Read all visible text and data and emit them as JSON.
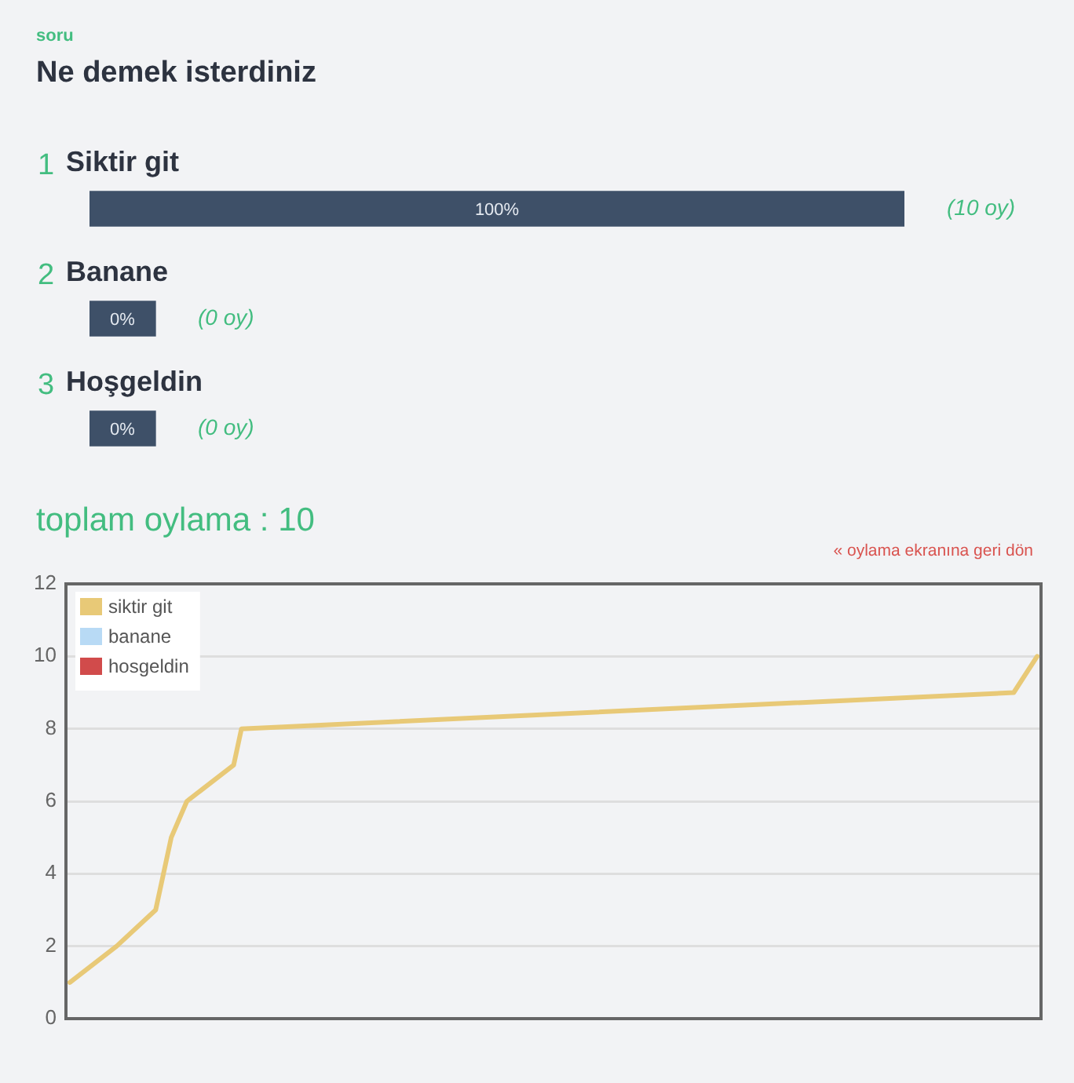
{
  "chart_data": [
    {
      "type": "bar",
      "orientation": "horizontal",
      "subtitle": "soru",
      "title": "Ne demek isterdiniz",
      "categories": [
        "Siktir git",
        "Banane",
        "Hoşgeldin"
      ],
      "values": [
        100,
        0,
        0
      ],
      "value_labels": [
        "100%",
        "0%",
        "0%"
      ],
      "color": "#3e5068",
      "annotations": [
        "1",
        "2",
        "3",
        "(10 oy)",
        "(0 oy)",
        "(0 oy)",
        "toplam oylama : 10"
      ]
    },
    {
      "type": "line",
      "categories": [
        null,
        null,
        null,
        null,
        null,
        null,
        null,
        null,
        null,
        null,
        null,
        null,
        null,
        null,
        null,
        null,
        null,
        null,
        null,
        null,
        null,
        null,
        null,
        null,
        null,
        null,
        null,
        null,
        null,
        null,
        null,
        null,
        null,
        null,
        null,
        null,
        null,
        null,
        null,
        null,
        null,
        null,
        null,
        null,
        null,
        null,
        null,
        null,
        null,
        null,
        null,
        null,
        null,
        null,
        null,
        null,
        null,
        null,
        null,
        null,
        null,
        null,
        null,
        null,
        null,
        null,
        null,
        null,
        null,
        null,
        null,
        null,
        null,
        null,
        null,
        null,
        null,
        null,
        null,
        null,
        null,
        null,
        null,
        null,
        null,
        null,
        null,
        null,
        null,
        null,
        null,
        null,
        null,
        null,
        null,
        null,
        null,
        null,
        null,
        null,
        null,
        null,
        null,
        null,
        null,
        null,
        null,
        null,
        null,
        null,
        null,
        null,
        null,
        null,
        null,
        null,
        null,
        null,
        null,
        null,
        null,
        null,
        null,
        null,
        null
      ],
      "series": [
        {
          "name": "siktir git",
          "color": "#e8c977",
          "values": [
            1,
            null,
            null,
            null,
            null,
            null,
            2,
            null,
            null,
            null,
            null,
            3,
            4,
            5,
            null,
            6,
            null,
            null,
            null,
            null,
            null,
            7,
            8,
            null,
            null,
            null,
            null,
            null,
            null,
            null,
            null,
            null,
            null,
            null,
            null,
            null,
            null,
            null,
            null,
            null,
            null,
            null,
            null,
            null,
            null,
            null,
            null,
            null,
            null,
            null,
            null,
            null,
            null,
            null,
            null,
            null,
            null,
            null,
            null,
            null,
            null,
            null,
            null,
            null,
            null,
            null,
            null,
            null,
            null,
            null,
            null,
            null,
            null,
            null,
            null,
            null,
            null,
            null,
            null,
            null,
            null,
            null,
            null,
            null,
            null,
            null,
            null,
            null,
            null,
            null,
            null,
            null,
            null,
            null,
            null,
            null,
            null,
            null,
            null,
            null,
            null,
            null,
            null,
            null,
            null,
            null,
            null,
            null,
            null,
            null,
            null,
            null,
            null,
            null,
            null,
            null,
            null,
            null,
            null,
            null,
            null,
            9,
            null,
            null,
            10
          ]
        },
        {
          "name": "banane",
          "color": "#b8daf5",
          "values": [
            null,
            null,
            null,
            null,
            null,
            null,
            null,
            null,
            null,
            null,
            null,
            null,
            null,
            null,
            null,
            null,
            null,
            null,
            null,
            null,
            null,
            null,
            null,
            null,
            null,
            null,
            null,
            null,
            null,
            null,
            null,
            null,
            null,
            null,
            null,
            null,
            null,
            null,
            null,
            null,
            null,
            null,
            null,
            null,
            null,
            null,
            null,
            null,
            null,
            null,
            null,
            null,
            null,
            null,
            null,
            null,
            null,
            null,
            null,
            null,
            null,
            null,
            null,
            null,
            null,
            null,
            null,
            null,
            null,
            null,
            null,
            null,
            null,
            null,
            null,
            null,
            null,
            null,
            null,
            null,
            null,
            null,
            null,
            null,
            null,
            null,
            null,
            null,
            null,
            null,
            null,
            null,
            null,
            null,
            null,
            null,
            null,
            null,
            null,
            null,
            null,
            null,
            null,
            null,
            null,
            null,
            null,
            null,
            null,
            null,
            null,
            null,
            null,
            null,
            null,
            null,
            null,
            null,
            null,
            null,
            null,
            null,
            null,
            null,
            null
          ]
        },
        {
          "name": "hosgeldin",
          "color": "#d14b4b",
          "values": [
            null,
            null,
            null,
            null,
            null,
            null,
            null,
            null,
            null,
            null,
            null,
            null,
            null,
            null,
            null,
            null,
            null,
            null,
            null,
            null,
            null,
            null,
            null,
            null,
            null,
            null,
            null,
            null,
            null,
            null,
            null,
            null,
            null,
            null,
            null,
            null,
            null,
            null,
            null,
            null,
            null,
            null,
            null,
            null,
            null,
            null,
            null,
            null,
            null,
            null,
            null,
            null,
            null,
            null,
            null,
            null,
            null,
            null,
            null,
            null,
            null,
            null,
            null,
            null,
            null,
            null,
            null,
            null,
            null,
            null,
            null,
            null,
            null,
            null,
            null,
            null,
            null,
            null,
            null,
            null,
            null,
            null,
            null,
            null,
            null,
            null,
            null,
            null,
            null,
            null,
            null,
            null,
            null,
            null,
            null,
            null,
            null,
            null,
            null,
            null,
            null,
            null,
            null,
            null,
            null,
            null,
            null,
            null,
            null,
            null,
            null,
            null,
            null,
            null,
            null,
            null,
            null,
            null,
            null,
            null,
            null,
            null,
            null,
            null,
            null
          ]
        }
      ],
      "ylim": [
        0,
        12
      ],
      "yticks": [
        0,
        2,
        4,
        6,
        8,
        10,
        12
      ],
      "grid": "y",
      "legend": "top left",
      "tick_labels": "y",
      "annotations": [
        "« oylama ekranına geri dön"
      ]
    }
  ]
}
